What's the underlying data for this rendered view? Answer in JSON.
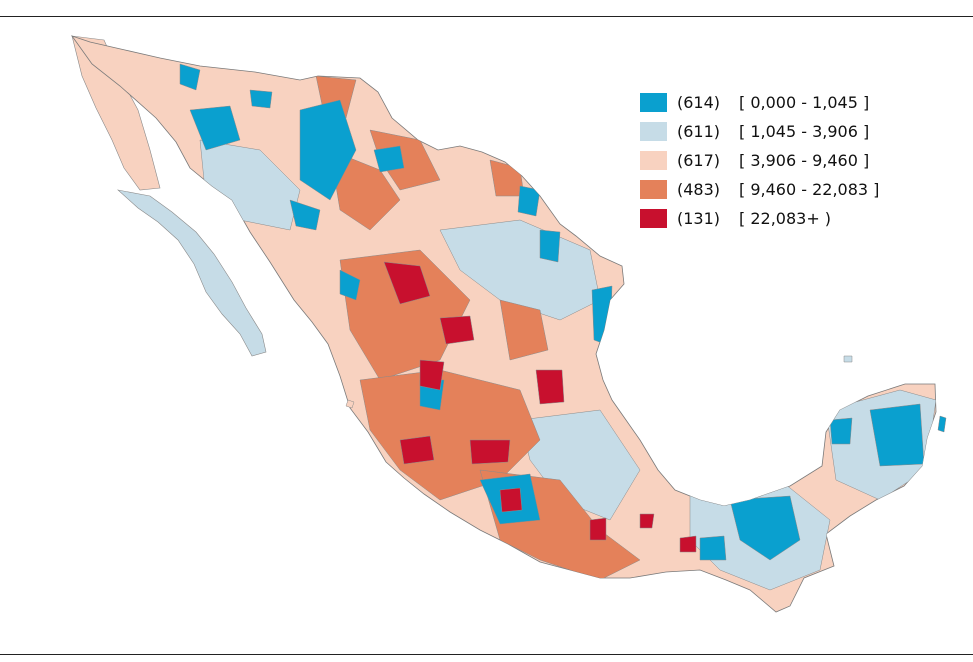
{
  "legend": {
    "items": [
      {
        "count": "(614)",
        "range": "[ 0,000 - 1,045 ]",
        "color": "#0aa0cf"
      },
      {
        "count": "(611)",
        "range": "[ 1,045 - 3,906 ]",
        "color": "#c6dce7"
      },
      {
        "count": "(617)",
        "range": "[ 3,906 - 9,460 ]",
        "color": "#f8d2c0"
      },
      {
        "count": "(483)",
        "range": "[ 9,460 - 22,083 ]",
        "color": "#e4815a"
      },
      {
        "count": "(131)",
        "range": "[ 22,083+ )",
        "color": "#c8102e"
      }
    ]
  },
  "map": {
    "region": "mexico-municipalities",
    "border_color": "#8a8a8a",
    "region_colors": {
      "base": "#f8d2c0",
      "light_blue": "#c6dce7",
      "blue": "#0aa0cf",
      "orange": "#e4815a",
      "red": "#c8102e"
    }
  }
}
